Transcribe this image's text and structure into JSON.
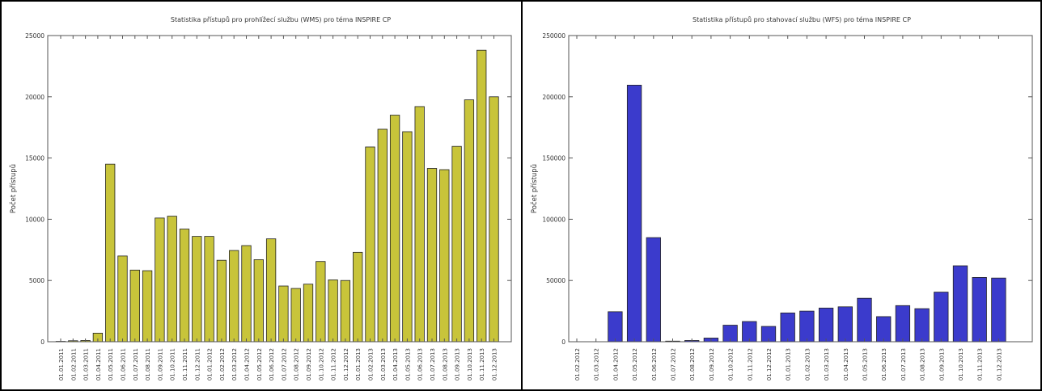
{
  "chart_data": [
    {
      "type": "bar",
      "title": "Statistika přístupů pro prohlížecí službu (WMS) pro téma INSPIRE CP",
      "xlabel": "",
      "ylabel": "Počet přístupů",
      "ylim": [
        0,
        25000
      ],
      "yticks": [
        "0",
        "5000",
        "10000",
        "15000",
        "20000",
        "25000"
      ],
      "bar_color": "#c8c43a",
      "grid": false,
      "categories": [
        "01.01.2011",
        "01.02.2011",
        "01.03.2011",
        "01.04.2011",
        "01.05.2011",
        "01.06.2011",
        "01.07.2011",
        "01.08.2011",
        "01.09.2011",
        "01.10.2011",
        "01.11.2011",
        "01.12.2011",
        "01.01.2012",
        "01.02.2012",
        "01.03.2012",
        "01.04.2012",
        "01.05.2012",
        "01.06.2012",
        "01.07.2012",
        "01.08.2012",
        "01.09.2012",
        "01.10.2012",
        "01.11.2012",
        "01.12.2012",
        "01.01.2013",
        "01.02.2013",
        "01.03.2013",
        "01.04.2013",
        "01.05.2013",
        "01.06.2013",
        "01.07.2013",
        "01.08.2013",
        "01.09.2013",
        "01.10.2013",
        "01.11.2013",
        "01.12.2013"
      ],
      "values": [
        30,
        80,
        100,
        700,
        14500,
        7000,
        5850,
        5800,
        10100,
        10250,
        9200,
        8600,
        8600,
        6650,
        7450,
        7850,
        6700,
        8400,
        4550,
        4350,
        4700,
        6550,
        5050,
        5000,
        7300,
        15900,
        17350,
        18500,
        17150,
        19200,
        14150,
        14050,
        15950,
        19750,
        23800,
        20000
      ]
    },
    {
      "type": "bar",
      "title": "Statistika přístupů pro stahovací službu (WFS) pro téma INSPIRE CP",
      "xlabel": "",
      "ylabel": "Počet přístupů",
      "ylim": [
        0,
        250000
      ],
      "yticks": [
        "0",
        "50000",
        "100000",
        "150000",
        "200000",
        "250000"
      ],
      "bar_color": "#3b3bcc",
      "grid": false,
      "categories": [
        "01.02.2012",
        "01.03.2012",
        "01.04.2012",
        "01.05.2012",
        "01.06.2012",
        "01.07.2012",
        "01.08.2012",
        "01.09.2012",
        "01.10.2012",
        "01.11.2012",
        "01.12.2012",
        "01.01.2013",
        "01.02.2013",
        "01.03.2013",
        "01.04.2013",
        "01.05.2013",
        "01.06.2013",
        "01.07.2013",
        "01.08.2013",
        "01.09.2013",
        "01.10.2013",
        "01.11.2013",
        "01.12.2013"
      ],
      "values": [
        0,
        0,
        24500,
        209500,
        85000,
        500,
        1000,
        3000,
        13500,
        16500,
        12500,
        23500,
        25000,
        27500,
        28500,
        35500,
        20500,
        29500,
        27000,
        40500,
        62000,
        52500,
        52000
      ]
    }
  ]
}
